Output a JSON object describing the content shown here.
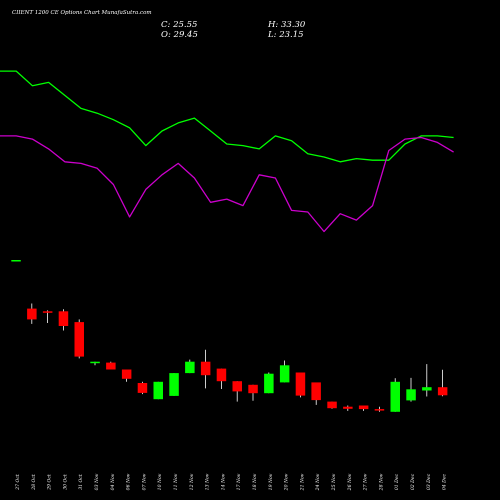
{
  "header": {
    "title": "CIIENT 1200  CE Options  Chart MunafaSutra.com",
    "close_label": "C: 25.55",
    "high_label": "H: 33.30",
    "open_label": "O: 29.45",
    "low_label": "L: 23.15"
  },
  "colors": {
    "background": "#000000",
    "up": "#00ff00",
    "down": "#ff0000",
    "line_upper": "#00ff00",
    "line_lower": "#cc00cc",
    "wick": "#ffffff",
    "text": "#ffffff"
  },
  "chart_data": [
    {
      "type": "line",
      "series": [
        {
          "values": [
            95,
            95,
            86,
            88,
            80,
            72,
            69,
            65,
            60,
            49,
            58,
            63,
            66,
            58,
            50,
            49,
            47,
            55,
            52,
            44,
            42,
            39,
            41,
            40,
            40,
            50,
            55,
            55,
            54
          ]
        },
        {
          "values": [
            55,
            55,
            53,
            47,
            39,
            38,
            35,
            25,
            5,
            22,
            31,
            38,
            29,
            14,
            16,
            12,
            31,
            29,
            9,
            8,
            -4,
            7,
            3,
            12,
            46,
            53,
            54,
            51,
            45
          ]
        }
      ]
    },
    {
      "type": "candlestick",
      "categories": [
        "27 Oct",
        "28 Oct",
        "29 Oct",
        "30 Oct",
        "31 Oct",
        "03 Nov",
        "04 Nov",
        "06 Nov",
        "07 Nov",
        "10 Nov",
        "11 Nov",
        "12 Nov",
        "13 Nov",
        "14 Nov",
        "17 Nov",
        "18 Nov",
        "19 Nov",
        "20 Nov",
        "21 Nov",
        "24 Nov",
        "25 Nov",
        "26 Nov",
        "27 Nov",
        "28 Nov",
        "01 Dec",
        "02 Dec",
        "03 Dec",
        "04 Dec"
      ],
      "series": [
        {
          "name": "open",
          "values": [
            157,
            140.8,
            139.9,
            139.9,
            136.3,
            122.8,
            122.8,
            120.5,
            116,
            110.6,
            111.7,
            119.3,
            123.1,
            120.8,
            116.6,
            115.4,
            112.6,
            116.2,
            119.5,
            116.2,
            109.8,
            108.1,
            108.5,
            107.3,
            106.4,
            110.2,
            113.5,
            114.6
          ]
        },
        {
          "name": "high",
          "values": [
            157,
            142.5,
            140.2,
            140.6,
            137.2,
            123.1,
            123.1,
            120.5,
            116.4,
            116.4,
            119.3,
            123.8,
            127.1,
            120.8,
            116.6,
            115.4,
            119.5,
            123.5,
            119.5,
            111.8,
            109.8,
            108.5,
            108.5,
            108.1,
            117.6,
            117.7,
            122.3,
            120.4
          ]
        },
        {
          "name": "low",
          "values": [
            157,
            135.7,
            136,
            133.5,
            124.2,
            121.9,
            120.5,
            116.4,
            112.3,
            110.6,
            111.7,
            119.3,
            114.2,
            114,
            109.8,
            110.1,
            112.6,
            116.2,
            111.2,
            108.7,
            107.4,
            106.7,
            106.7,
            106.4,
            106.4,
            109.8,
            111.5,
            111.6
          ]
        },
        {
          "name": "close",
          "values": [
            157,
            137.2,
            139.5,
            135,
            124.8,
            123.1,
            120.5,
            117.4,
            112.7,
            116.4,
            119.3,
            123.1,
            118.6,
            116.6,
            113.2,
            112.6,
            119.1,
            121.9,
            111.8,
            110.3,
            107.6,
            107.4,
            107.3,
            106.9,
            116.4,
            113.9,
            114.6,
            111.9
          ]
        }
      ]
    }
  ]
}
